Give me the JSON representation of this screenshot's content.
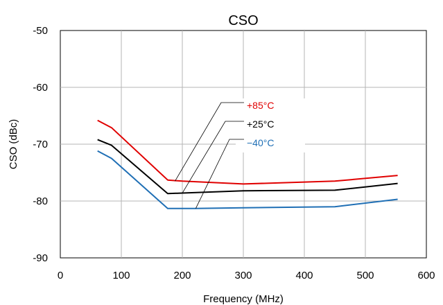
{
  "chart_data": {
    "type": "line",
    "title": "CSO",
    "xlabel": "Frequency (MHz)",
    "ylabel": "CSO (dBc)",
    "xlim": [
      0,
      600
    ],
    "ylim": [
      -90,
      -50
    ],
    "xticks": [
      0,
      100,
      200,
      300,
      400,
      500,
      600
    ],
    "yticks": [
      -50,
      -60,
      -70,
      -80,
      -90
    ],
    "grid": true,
    "series": [
      {
        "name": "+85°C",
        "color": "#e00000",
        "x": [
          61,
          84,
          176,
          200,
          300,
          450,
          553
        ],
        "y": [
          -65.8,
          -67.1,
          -76.3,
          -76.5,
          -77.0,
          -76.5,
          -75.5
        ],
        "label_anchor": [
          188,
          -76.5
        ]
      },
      {
        "name": "+25°C",
        "color": "#000000",
        "x": [
          61,
          84,
          176,
          200,
          300,
          450,
          553
        ],
        "y": [
          -69.2,
          -70.2,
          -78.7,
          -78.6,
          -78.2,
          -78.1,
          -76.9
        ],
        "label_anchor": [
          200,
          -78.6
        ]
      },
      {
        "name": "−40°C",
        "color": "#1f6fb5",
        "x": [
          61,
          84,
          176,
          220,
          300,
          450,
          553
        ],
        "y": [
          -71.2,
          -72.5,
          -81.3,
          -81.3,
          -81.2,
          -81.0,
          -79.7
        ],
        "label_anchor": [
          222,
          -81.3
        ]
      }
    ]
  }
}
